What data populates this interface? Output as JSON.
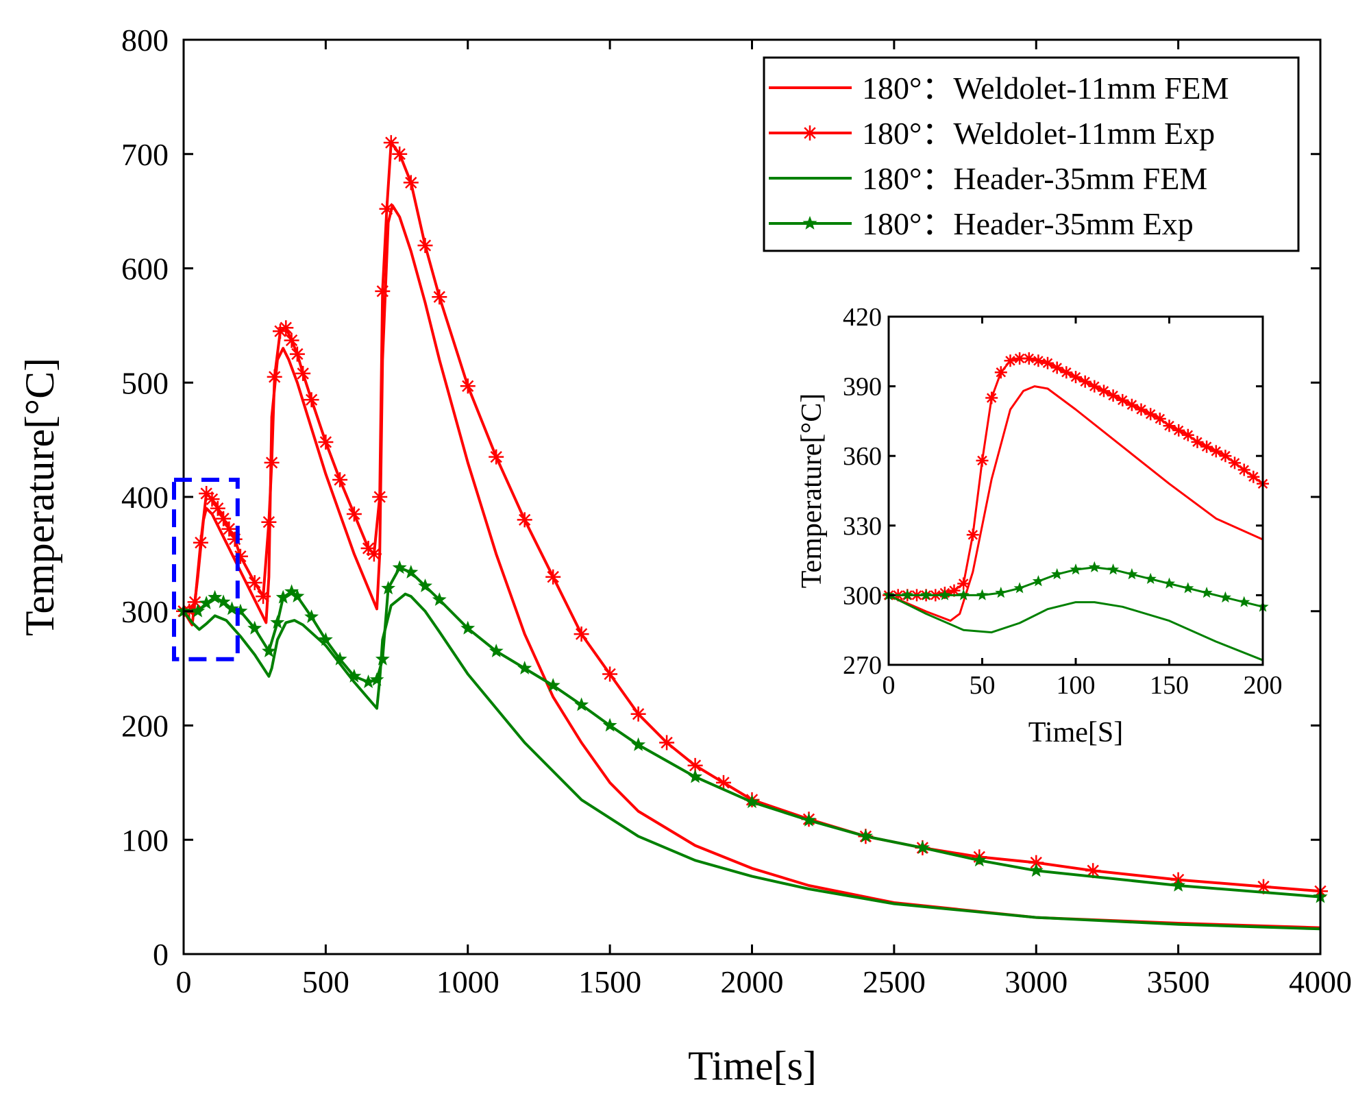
{
  "colors": {
    "red": "#ff0000",
    "green": "#008000",
    "blue": "#0000ff",
    "axis": "#000000"
  },
  "chart_data": [
    {
      "type": "line",
      "title": "",
      "xlabel": "Time[s]",
      "ylabel": "Temperature[°C]",
      "xlim": [
        0,
        4000
      ],
      "ylim": [
        0,
        800
      ],
      "xticks": [
        "0",
        "500",
        "1000",
        "1500",
        "2000",
        "2500",
        "3000",
        "3500",
        "4000"
      ],
      "yticks": [
        "0",
        "100",
        "200",
        "300",
        "400",
        "500",
        "600",
        "700",
        "800"
      ],
      "legend": "top-right",
      "zoom_box": {
        "x": [
          0,
          190
        ],
        "y": [
          258,
          415
        ]
      },
      "series": [
        {
          "name": "180°：Weldolet-11mm FEM",
          "marker": "none",
          "color": "#ff0000",
          "x": [
            0,
            30,
            50,
            70,
            80,
            100,
            150,
            200,
            250,
            290,
            300,
            310,
            330,
            350,
            370,
            400,
            450,
            500,
            550,
            600,
            650,
            680,
            690,
            700,
            720,
            735,
            760,
            800,
            850,
            900,
            1000,
            1100,
            1200,
            1300,
            1400,
            1500,
            1600,
            1800,
            2000,
            2200,
            2500,
            3000,
            3500,
            4000
          ],
          "y": [
            300,
            288,
            330,
            380,
            390,
            385,
            360,
            335,
            310,
            290,
            330,
            470,
            520,
            530,
            520,
            500,
            460,
            420,
            385,
            350,
            320,
            302,
            350,
            520,
            640,
            655,
            645,
            615,
            570,
            520,
            430,
            350,
            280,
            225,
            185,
            150,
            125,
            95,
            75,
            60,
            45,
            32,
            27,
            23
          ]
        },
        {
          "name": "180°：Weldolet-11mm Exp",
          "marker": "asterisk",
          "color": "#ff0000",
          "x": [
            0,
            20,
            40,
            60,
            80,
            100,
            120,
            140,
            160,
            180,
            200,
            250,
            280,
            300,
            310,
            320,
            340,
            360,
            380,
            400,
            420,
            450,
            500,
            550,
            600,
            650,
            670,
            690,
            700,
            715,
            730,
            760,
            800,
            850,
            900,
            1000,
            1100,
            1200,
            1300,
            1400,
            1500,
            1600,
            1700,
            1800,
            1900,
            2000,
            2200,
            2400,
            2600,
            2800,
            3000,
            3200,
            3500,
            3800,
            4000
          ],
          "y": [
            300,
            300,
            308,
            360,
            403,
            398,
            390,
            381,
            372,
            363,
            348,
            325,
            313,
            378,
            430,
            505,
            545,
            548,
            537,
            525,
            508,
            485,
            448,
            415,
            385,
            355,
            350,
            400,
            580,
            652,
            710,
            700,
            675,
            620,
            575,
            497,
            435,
            380,
            330,
            280,
            245,
            210,
            185,
            165,
            150,
            135,
            118,
            103,
            93,
            85,
            80,
            73,
            65,
            59,
            55
          ]
        },
        {
          "name": "180°：Header-35mm FEM",
          "marker": "none",
          "color": "#008000",
          "x": [
            0,
            30,
            55,
            80,
            110,
            150,
            200,
            250,
            300,
            310,
            330,
            360,
            390,
            420,
            500,
            600,
            680,
            690,
            700,
            730,
            780,
            800,
            850,
            900,
            1000,
            1200,
            1400,
            1600,
            1800,
            2000,
            2200,
            2500,
            3000,
            3500,
            4000
          ],
          "y": [
            300,
            290,
            284,
            289,
            296,
            292,
            278,
            262,
            243,
            250,
            275,
            290,
            292,
            288,
            270,
            238,
            215,
            240,
            275,
            305,
            315,
            313,
            300,
            282,
            245,
            185,
            135,
            103,
            82,
            68,
            57,
            44,
            32,
            26,
            22
          ]
        },
        {
          "name": "180°：Header-35mm Exp",
          "marker": "star",
          "color": "#008000",
          "x": [
            0,
            50,
            80,
            110,
            140,
            170,
            200,
            250,
            300,
            330,
            350,
            380,
            400,
            450,
            500,
            550,
            600,
            650,
            680,
            700,
            720,
            760,
            800,
            850,
            900,
            1000,
            1100,
            1200,
            1300,
            1400,
            1500,
            1600,
            1800,
            2000,
            2200,
            2400,
            2600,
            2800,
            3000,
            3500,
            4000
          ],
          "y": [
            300,
            300,
            307,
            312,
            308,
            302,
            300,
            285,
            265,
            290,
            312,
            317,
            313,
            295,
            275,
            258,
            243,
            238,
            240,
            258,
            320,
            338,
            334,
            322,
            310,
            285,
            265,
            250,
            235,
            218,
            200,
            183,
            155,
            133,
            117,
            103,
            93,
            82,
            73,
            60,
            50
          ]
        }
      ]
    },
    {
      "type": "line",
      "title": "",
      "xlabel": "Time[S]",
      "ylabel": "Temperature[°C]",
      "xlim": [
        0,
        200
      ],
      "ylim": [
        270,
        420
      ],
      "xticks": [
        "0",
        "50",
        "100",
        "150",
        "200"
      ],
      "yticks": [
        "270",
        "300",
        "330",
        "360",
        "390",
        "420"
      ],
      "series": [
        {
          "name": "180°：Weldolet-11mm FEM",
          "marker": "none",
          "color": "#ff0000",
          "x": [
            0,
            20,
            33,
            38,
            45,
            55,
            65,
            72,
            78,
            85,
            100,
            125,
            150,
            175,
            200
          ],
          "y": [
            300,
            293,
            289,
            292,
            310,
            350,
            380,
            388,
            390,
            389,
            380,
            364,
            348,
            333,
            324
          ]
        },
        {
          "name": "180°：Weldolet-11mm Exp",
          "marker": "asterisk",
          "color": "#ff0000",
          "x": [
            0,
            5,
            10,
            15,
            20,
            25,
            30,
            35,
            40,
            45,
            50,
            55,
            60,
            65,
            70,
            75,
            80,
            85,
            90,
            95,
            100,
            105,
            110,
            115,
            120,
            125,
            130,
            135,
            140,
            145,
            150,
            155,
            160,
            165,
            170,
            175,
            180,
            185,
            190,
            195,
            200
          ],
          "y": [
            300,
            300,
            300,
            300,
            300,
            300,
            301,
            302,
            305,
            326,
            358,
            385,
            396,
            401,
            402,
            402,
            401,
            400,
            398,
            396,
            394,
            392,
            390,
            388,
            386,
            384,
            382,
            380,
            378,
            376,
            373,
            371,
            369,
            366,
            364,
            362,
            360,
            357,
            354,
            351,
            348
          ]
        },
        {
          "name": "180°：Header-35mm FEM",
          "marker": "none",
          "color": "#008000",
          "x": [
            0,
            20,
            40,
            55,
            70,
            85,
            100,
            110,
            125,
            150,
            175,
            200
          ],
          "y": [
            300,
            292,
            285,
            284,
            288,
            294,
            297,
            297,
            295,
            289,
            280,
            272
          ]
        },
        {
          "name": "180°：Header-35mm Exp",
          "marker": "star",
          "color": "#008000",
          "x": [
            0,
            10,
            20,
            30,
            40,
            50,
            60,
            70,
            80,
            90,
            100,
            110,
            120,
            130,
            140,
            150,
            160,
            170,
            180,
            190,
            200
          ],
          "y": [
            300,
            300,
            300,
            300,
            300,
            300,
            301,
            303,
            306,
            309,
            311,
            312,
            311,
            309,
            307,
            305,
            303,
            301,
            299,
            297,
            295
          ]
        }
      ]
    }
  ]
}
